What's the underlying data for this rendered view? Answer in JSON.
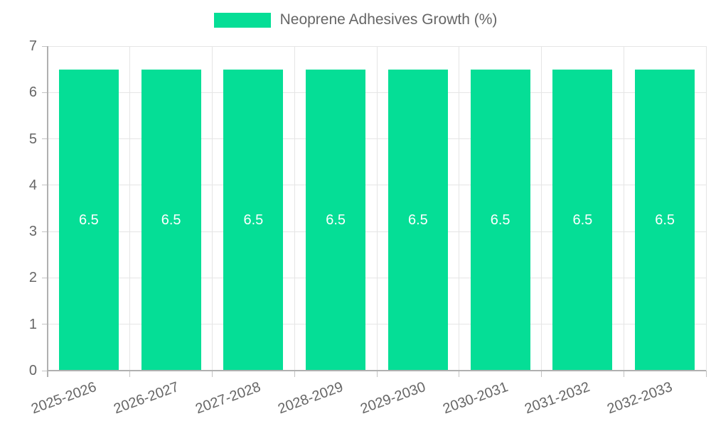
{
  "chart_data": {
    "type": "bar",
    "categories": [
      "2025-2026",
      "2026-2027",
      "2027-2028",
      "2028-2029",
      "2029-2030",
      "2030-2031",
      "2031-2032",
      "2032-2033"
    ],
    "series": [
      {
        "name": "Neoprene Adhesives Growth (%)",
        "values": [
          6.5,
          6.5,
          6.5,
          6.5,
          6.5,
          6.5,
          6.5,
          6.5
        ]
      }
    ],
    "value_labels": [
      "6.5",
      "6.5",
      "6.5",
      "6.5",
      "6.5",
      "6.5",
      "6.5",
      "6.5"
    ],
    "title": "",
    "xlabel": "",
    "ylabel": "",
    "ylim": [
      0,
      7
    ],
    "yticks": [
      0,
      1,
      2,
      3,
      4,
      5,
      6,
      7
    ],
    "grid": true,
    "legend_position": "top",
    "colors": {
      "bar": "#05de96",
      "gridline": "#e5e5e5",
      "axis": "#b0b0b0",
      "tick": "#c2c2c2",
      "tick_text": "#666666",
      "value_text": "#ffffff"
    }
  }
}
